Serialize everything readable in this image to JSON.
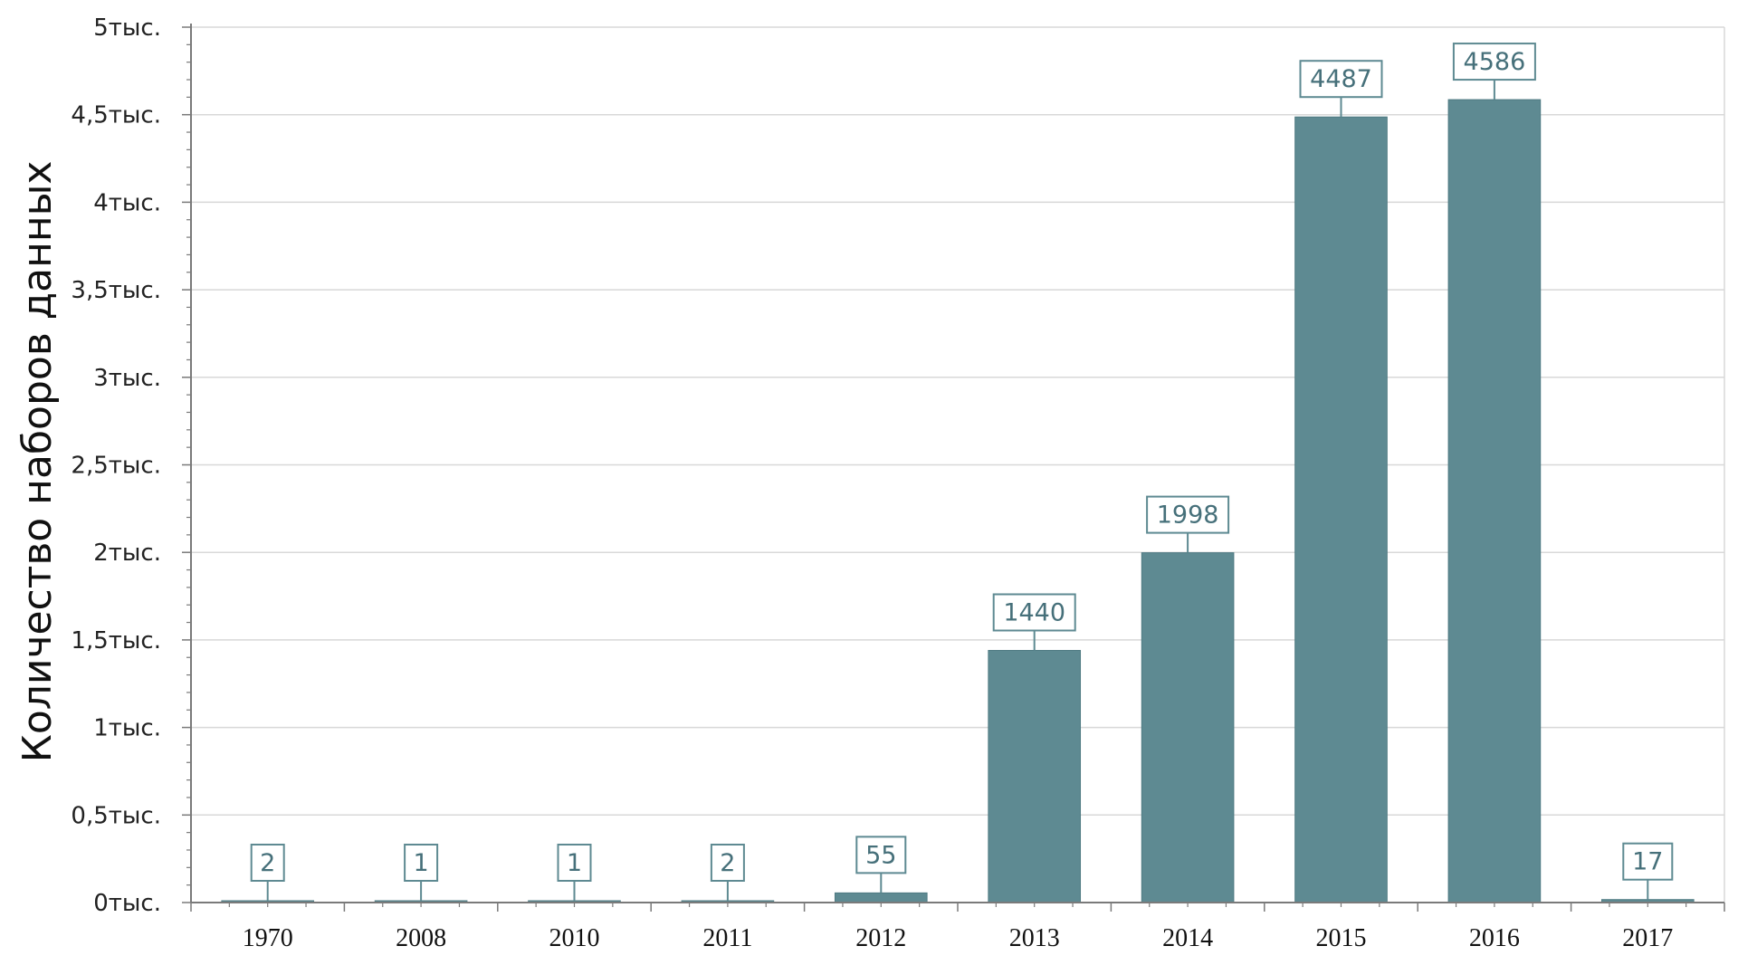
{
  "colors": {
    "bar": "#5e8a92",
    "bar_stroke": "#4e7a82",
    "grid": "#d8d8d8",
    "axis": "#7a7a7a",
    "label_border": "#5e8a92",
    "label_text": "#46707a"
  },
  "chart_data": {
    "type": "bar",
    "title": "",
    "xlabel": "",
    "ylabel": "Количество наборов данных",
    "categories": [
      "1970",
      "2008",
      "2010",
      "2011",
      "2012",
      "2013",
      "2014",
      "2015",
      "2016",
      "2017"
    ],
    "values": [
      2,
      1,
      1,
      2,
      55,
      1440,
      1998,
      4487,
      4586,
      17
    ],
    "data_labels": [
      "2",
      "1",
      "1",
      "2",
      "55",
      "1440",
      "1998",
      "4487",
      "4586",
      "17"
    ],
    "ylim": [
      0,
      5000
    ],
    "yticks": [
      0,
      500,
      1000,
      1500,
      2000,
      2500,
      3000,
      3500,
      4000,
      4500,
      5000
    ],
    "ytick_labels": [
      "0тыс.",
      "0,5тыс.",
      "1тыс.",
      "1,5тыс.",
      "2тыс.",
      "2,5тыс.",
      "3тыс.",
      "3,5тыс.",
      "4тыс.",
      "4,5тыс.",
      "5тыс."
    ],
    "grid": true,
    "legend": "none"
  }
}
